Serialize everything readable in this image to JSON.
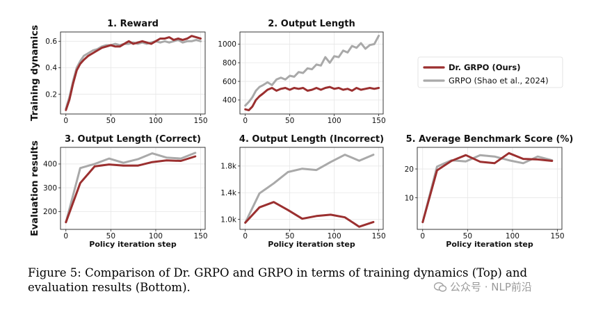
{
  "row_labels": [
    "Training dynamics",
    "Evaluation results"
  ],
  "legend": {
    "items": [
      {
        "label": "Dr. GRPO (Ours)",
        "color": "#9b2f2f"
      },
      {
        "label": "GRPO (Shao et al., 2024)",
        "color": "#a9a9a9"
      }
    ]
  },
  "colors": {
    "drgrpo": "#9b2f2f",
    "grpo": "#a9a9a9"
  },
  "caption": {
    "text": "Figure 5: Comparison of Dr. GRPO and GRPO in terms of training dynamics (Top) and evaluation results (Bottom)."
  },
  "watermark": {
    "text": "公众号 · NLP前沿",
    "icon": "wechat-icon"
  },
  "chart_data": [
    {
      "type": "line",
      "title": "1. Reward",
      "xlabel": "",
      "ylabel": "",
      "xlim": [
        -6,
        155
      ],
      "ylim": [
        0.05,
        0.67
      ],
      "xticks": [
        0,
        50,
        100,
        150
      ],
      "yticks": [
        0.2,
        0.4,
        0.6
      ],
      "ytick_labels": [
        "0.2",
        "0.4",
        "0.6"
      ],
      "series": [
        {
          "name": "Dr. GRPO (Ours)",
          "x": [
            0,
            4,
            8,
            12,
            16,
            20,
            25,
            30,
            35,
            40,
            45,
            50,
            55,
            60,
            65,
            70,
            75,
            80,
            85,
            90,
            95,
            100,
            105,
            110,
            115,
            120,
            125,
            130,
            135,
            140,
            145,
            150
          ],
          "y": [
            0.08,
            0.16,
            0.28,
            0.38,
            0.43,
            0.46,
            0.49,
            0.51,
            0.53,
            0.55,
            0.56,
            0.57,
            0.56,
            0.56,
            0.58,
            0.6,
            0.58,
            0.59,
            0.6,
            0.59,
            0.58,
            0.6,
            0.62,
            0.62,
            0.63,
            0.61,
            0.62,
            0.61,
            0.62,
            0.64,
            0.63,
            0.62
          ]
        },
        {
          "name": "GRPO (Shao et al., 2024)",
          "x": [
            0,
            4,
            8,
            12,
            16,
            20,
            25,
            30,
            35,
            40,
            45,
            50,
            55,
            60,
            65,
            70,
            75,
            80,
            85,
            90,
            95,
            100,
            105,
            110,
            115,
            120,
            125,
            130,
            135,
            140,
            145,
            150
          ],
          "y": [
            0.09,
            0.18,
            0.3,
            0.4,
            0.45,
            0.49,
            0.51,
            0.53,
            0.54,
            0.56,
            0.57,
            0.57,
            0.58,
            0.57,
            0.58,
            0.58,
            0.59,
            0.58,
            0.59,
            0.58,
            0.59,
            0.6,
            0.59,
            0.6,
            0.59,
            0.6,
            0.61,
            0.59,
            0.6,
            0.6,
            0.61,
            0.6
          ]
        }
      ]
    },
    {
      "type": "line",
      "title": "2. Output Length",
      "xlabel": "",
      "ylabel": "",
      "xlim": [
        -6,
        155
      ],
      "ylim": [
        250,
        1130
      ],
      "xticks": [
        0,
        50,
        100,
        150
      ],
      "yticks": [
        400,
        600,
        800,
        1000
      ],
      "ytick_labels": [
        "400",
        "600",
        "800",
        "1000"
      ],
      "series": [
        {
          "name": "Dr. GRPO (Ours)",
          "x": [
            0,
            4,
            8,
            12,
            16,
            20,
            25,
            30,
            35,
            40,
            45,
            50,
            55,
            60,
            65,
            70,
            75,
            80,
            85,
            90,
            95,
            100,
            105,
            110,
            115,
            120,
            125,
            130,
            135,
            140,
            145,
            150
          ],
          "y": [
            300,
            290,
            330,
            400,
            440,
            470,
            510,
            530,
            500,
            520,
            530,
            510,
            530,
            520,
            530,
            500,
            510,
            530,
            510,
            530,
            540,
            520,
            530,
            510,
            520,
            500,
            530,
            510,
            520,
            530,
            520,
            530
          ]
        },
        {
          "name": "GRPO (Shao et al., 2024)",
          "x": [
            0,
            4,
            8,
            12,
            16,
            20,
            25,
            30,
            35,
            40,
            45,
            50,
            55,
            60,
            65,
            70,
            75,
            80,
            85,
            90,
            95,
            100,
            105,
            110,
            115,
            120,
            125,
            130,
            135,
            140,
            145,
            150
          ],
          "y": [
            340,
            380,
            430,
            500,
            540,
            560,
            590,
            560,
            620,
            640,
            620,
            660,
            650,
            700,
            690,
            740,
            730,
            780,
            770,
            860,
            800,
            870,
            860,
            930,
            910,
            980,
            960,
            1010,
            950,
            990,
            1000,
            1090
          ]
        }
      ]
    },
    {
      "type": "line",
      "title": "3. Output Length (Correct)",
      "xlabel": "Policy iteration step",
      "ylabel": "",
      "xlim": [
        -6,
        155
      ],
      "ylim": [
        125,
        470
      ],
      "xticks": [
        0,
        50,
        100,
        150
      ],
      "yticks": [
        200,
        300,
        400
      ],
      "ytick_labels": [
        "200",
        "300",
        "400"
      ],
      "series": [
        {
          "name": "Dr. GRPO (Ours)",
          "x": [
            0,
            16,
            32,
            48,
            64,
            80,
            96,
            112,
            128,
            144
          ],
          "y": [
            155,
            320,
            390,
            398,
            393,
            393,
            408,
            415,
            413,
            432
          ]
        },
        {
          "name": "GRPO (Shao et al., 2024)",
          "x": [
            0,
            16,
            32,
            48,
            64,
            80,
            96,
            112,
            128,
            144
          ],
          "y": [
            155,
            383,
            400,
            423,
            405,
            420,
            445,
            427,
            423,
            447
          ]
        }
      ]
    },
    {
      "type": "line",
      "title": "4. Output Length (Incorrect)",
      "xlabel": "Policy iteration step",
      "ylabel": "",
      "xlim": [
        -6,
        155
      ],
      "ylim": [
        850,
        2080
      ],
      "xticks": [
        0,
        50,
        100,
        150
      ],
      "yticks": [
        1000,
        1400,
        1800
      ],
      "ytick_labels": [
        "1.0k",
        "1.4k",
        "1.8k"
      ],
      "series": [
        {
          "name": "Dr. GRPO (Ours)",
          "x": [
            0,
            16,
            32,
            48,
            64,
            80,
            96,
            112,
            128,
            144
          ],
          "y": [
            950,
            1180,
            1260,
            1140,
            1010,
            1050,
            1070,
            1030,
            890,
            960
          ]
        },
        {
          "name": "GRPO (Shao et al., 2024)",
          "x": [
            0,
            16,
            32,
            48,
            64,
            80,
            96,
            112,
            128,
            144
          ],
          "y": [
            950,
            1390,
            1540,
            1710,
            1760,
            1740,
            1860,
            1970,
            1880,
            1970
          ]
        }
      ]
    },
    {
      "type": "line",
      "title": "5. Average Benchmark Score (%)",
      "xlabel": "Policy iteration step",
      "ylabel": "",
      "xlim": [
        -6,
        155
      ],
      "ylim": [
        -1,
        27.5
      ],
      "xticks": [
        0,
        50,
        100,
        150
      ],
      "yticks": [
        10,
        20
      ],
      "ytick_labels": [
        "10",
        "20"
      ],
      "series": [
        {
          "name": "Dr. GRPO (Ours)",
          "x": [
            0,
            16,
            32,
            48,
            64,
            80,
            96,
            112,
            128,
            144
          ],
          "y": [
            1.5,
            19.5,
            22.8,
            24.8,
            22.5,
            22.0,
            25.5,
            23.5,
            23.3,
            22.8
          ]
        },
        {
          "name": "GRPO (Shao et al., 2024)",
          "x": [
            0,
            16,
            32,
            48,
            64,
            80,
            96,
            112,
            128,
            144
          ],
          "y": [
            1.5,
            20.8,
            23.0,
            22.6,
            24.8,
            24.3,
            23.0,
            22.0,
            24.3,
            23.0
          ]
        }
      ]
    }
  ]
}
